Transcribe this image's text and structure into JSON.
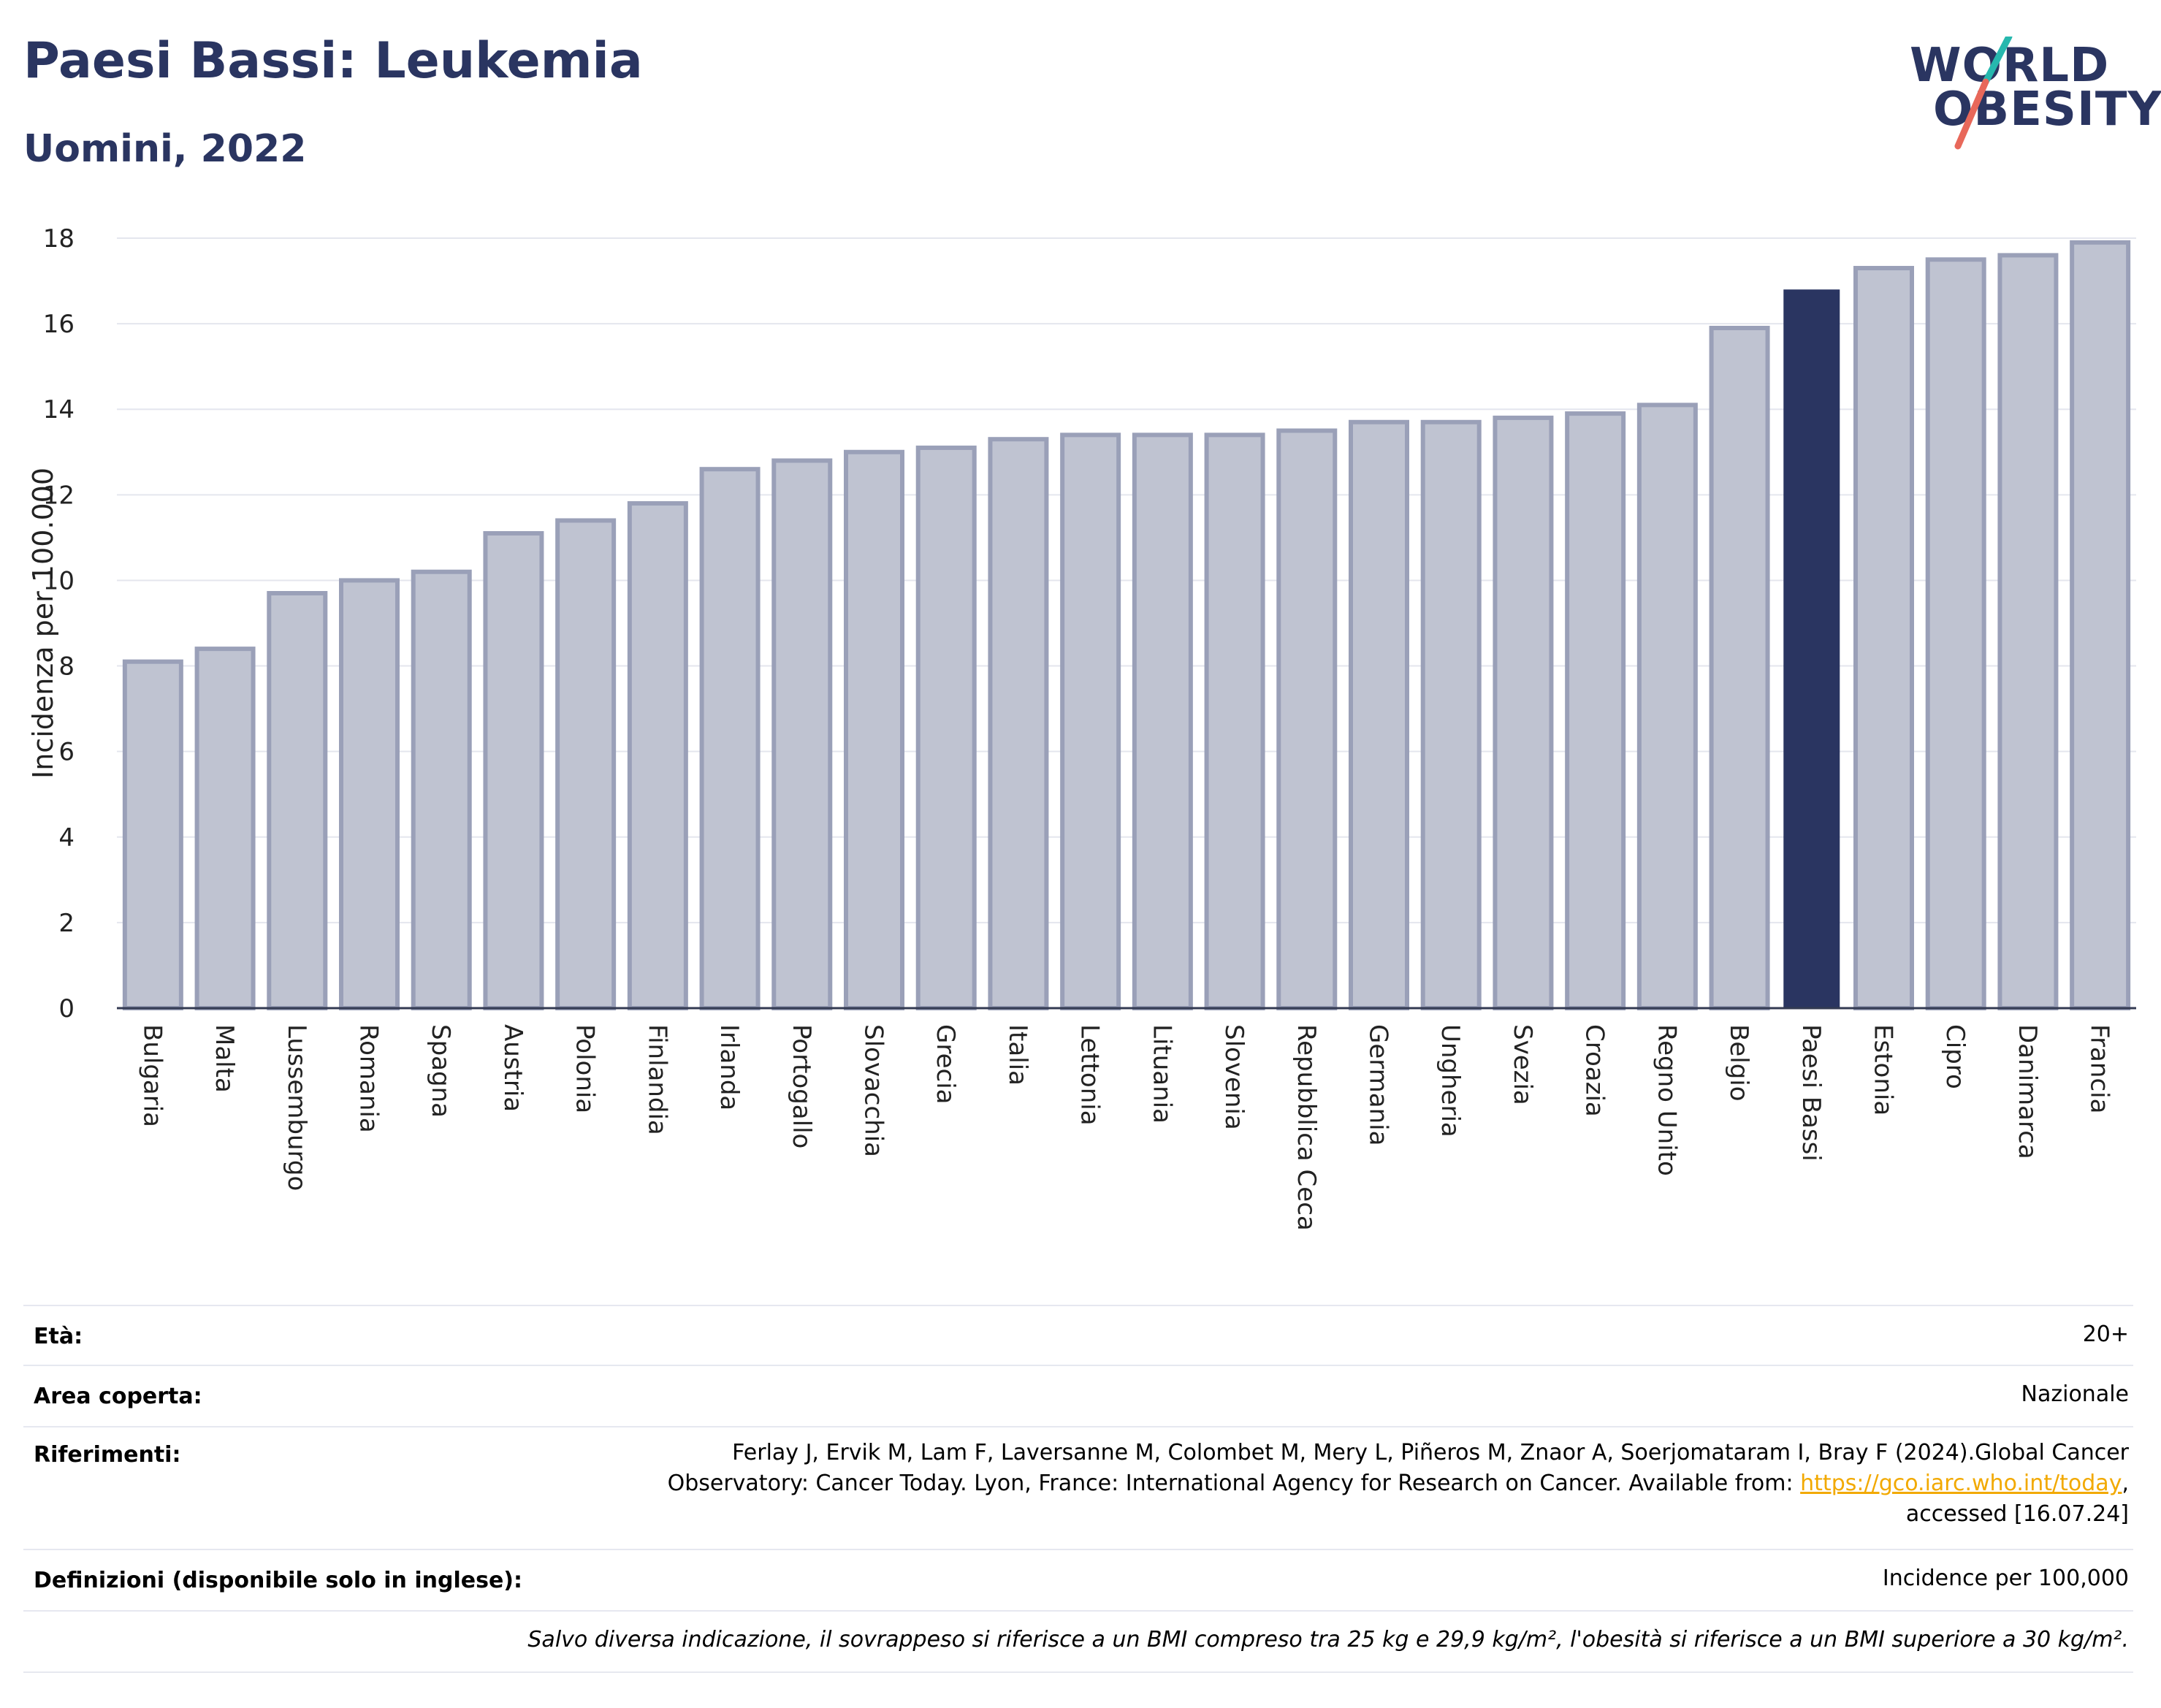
{
  "header": {
    "title": "Paesi Bassi: Leukemia",
    "subtitle": "Uomini, 2022",
    "logo_line1": "WORLD",
    "logo_line2": "OBESITY"
  },
  "colors": {
    "title": "#2a3561",
    "bar": "#bfc3d1",
    "bar_border": "#9aa0b8",
    "highlight": "#2a3561",
    "link": "#f2a900",
    "logo_slash_teal": "#27b8ae",
    "logo_slash_red": "#e8685a"
  },
  "chart_data": {
    "type": "bar",
    "ylabel": "Incidenza per 100.000",
    "ylim": [
      0,
      18
    ],
    "yticks": [
      0,
      2,
      4,
      6,
      8,
      10,
      12,
      14,
      16,
      18
    ],
    "grid": true,
    "highlight": "Paesi Bassi",
    "categories": [
      "Bulgaria",
      "Malta",
      "Lussemburgo",
      "Romania",
      "Spagna",
      "Austria",
      "Polonia",
      "Finlandia",
      "Irlanda",
      "Portogallo",
      "Slovacchia",
      "Grecia",
      "Italia",
      "Lettonia",
      "Lituania",
      "Slovenia",
      "Repubblica Ceca",
      "Germania",
      "Ungheria",
      "Svezia",
      "Croazia",
      "Regno Unito",
      "Belgio",
      "Paesi Bassi",
      "Estonia",
      "Cipro",
      "Danimarca",
      "Francia"
    ],
    "values": [
      8.1,
      8.4,
      9.7,
      10.0,
      10.2,
      11.1,
      11.4,
      11.8,
      12.6,
      12.8,
      13.0,
      13.1,
      13.3,
      13.4,
      13.4,
      13.4,
      13.5,
      13.7,
      13.7,
      13.8,
      13.9,
      14.1,
      15.9,
      16.8,
      17.3,
      17.5,
      17.6,
      17.9
    ]
  },
  "info_table": {
    "age_label": "Età:",
    "age_value": "20+",
    "area_label": "Area coperta:",
    "area_value": "Nazionale",
    "refs_label": "Riferimenti:",
    "refs_text_1": "Ferlay J, Ervik M, Lam F, Laversanne M, Colombet M, Mery L, Piñeros M, Znaor A, Soerjomataram I, Bray F (2024).Global Cancer Observatory: Cancer Today. Lyon, France: International Agency for Research on Cancer. Available from: ",
    "refs_link": "https://gco.iarc.who.int/today",
    "refs_text_2": ", accessed [16.07.24]",
    "defs_label": "Definizioni (disponibile solo in inglese):",
    "defs_value": "Incidence per 100,000",
    "note": "Salvo diversa indicazione, il sovrappeso si riferisce a un BMI compreso tra 25 kg e 29,9 kg/m², l'obesità si riferisce a un BMI superiore a 30 kg/m²."
  }
}
